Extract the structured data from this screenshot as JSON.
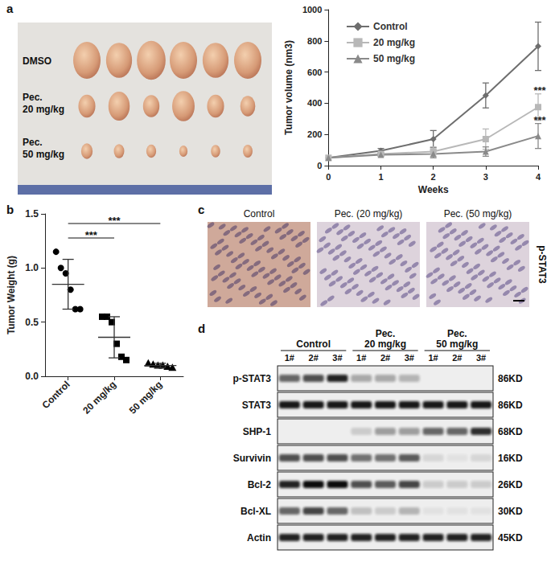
{
  "chart_data": [
    {
      "type": "line",
      "x_label": "Weeks",
      "y_label": "Tumor volume (nm3)",
      "x": [
        0,
        1,
        2,
        3,
        4
      ],
      "xlim": [
        0,
        4
      ],
      "xticks": [
        0,
        1,
        2,
        3,
        4
      ],
      "ylim": [
        0,
        1000
      ],
      "yticks": [
        0,
        200,
        400,
        600,
        800,
        1000
      ],
      "grid": false,
      "legend": "upper left",
      "series": [
        {
          "name": "Control",
          "color": "#6e6e6e",
          "marker": "diamond",
          "values": [
            50,
            95,
            170,
            450,
            765
          ],
          "errors": [
            0,
            15,
            55,
            80,
            155
          ]
        },
        {
          "name": "20 mg/kg",
          "color": "#b8b8b8",
          "marker": "square",
          "values": [
            50,
            75,
            90,
            170,
            375
          ],
          "errors": [
            0,
            10,
            30,
            65,
            85
          ]
        },
        {
          "name": "50 mg/kg",
          "color": "#8a8a8a",
          "marker": "triangle",
          "values": [
            50,
            70,
            75,
            90,
            190
          ],
          "errors": [
            0,
            10,
            25,
            30,
            80
          ]
        }
      ],
      "annotations": [
        {
          "text": "***",
          "series": "20 mg/kg",
          "x": 4
        },
        {
          "text": "***",
          "series": "50 mg/kg",
          "x": 4
        }
      ]
    },
    {
      "type": "scatter",
      "y_label": "Tumor Weight (g)",
      "categories": [
        "Control",
        "20 mg/kg",
        "50 mg/kg"
      ],
      "ylim": [
        0,
        1.5
      ],
      "yticks": [
        {
          "value": 0,
          "label": "0.0"
        },
        {
          "value": 0.5,
          "label": "0.5"
        },
        {
          "value": 1,
          "label": "1.0"
        },
        {
          "value": 1.5,
          "label": "1.5"
        }
      ],
      "grid": false,
      "color": "#000000",
      "markers": [
        "circle",
        "square",
        "triangle"
      ],
      "points": [
        [
          1.15,
          1.0,
          0.95,
          0.8,
          0.62,
          0.62
        ],
        [
          0.55,
          0.55,
          0.5,
          0.3,
          0.18,
          0.15
        ],
        [
          0.12,
          0.11,
          0.1,
          0.1,
          0.09,
          0.08
        ]
      ],
      "means": [
        0.85,
        0.36,
        0.1
      ],
      "sds": [
        0.23,
        0.19,
        0.02
      ],
      "annotations": [
        {
          "text": "***",
          "from": "Control",
          "to": "20 mg/kg"
        },
        {
          "text": "***",
          "from": "Control",
          "to": "50 mg/kg"
        }
      ]
    }
  ],
  "panel_labels": [
    "a",
    "b",
    "c",
    "d"
  ],
  "photo": {
    "rows": [
      [
        "DMSO"
      ],
      [
        "Pec.",
        "20 mg/kg"
      ],
      [
        "Pec.",
        "50 mg/kg"
      ]
    ]
  },
  "ihc": {
    "images": [
      "Control",
      "Pec. (20 mg/kg)",
      "Pec. (50 mg/kg)"
    ],
    "stain": "p-STAT3"
  },
  "blot": {
    "groups": [
      [
        "Control"
      ],
      [
        "Pec.",
        "20 mg/kg"
      ],
      [
        "Pec.",
        "50 mg/kg"
      ]
    ],
    "lanes": [
      "1#",
      "2#",
      "3#",
      "1#",
      "2#",
      "3#",
      "1#",
      "2#",
      "3#"
    ],
    "rows": [
      {
        "name": "p-STAT3",
        "size": "86KD",
        "intensity": [
          0.6,
          0.7,
          0.9,
          0.3,
          0.3,
          0.25,
          0,
          0,
          0
        ]
      },
      {
        "name": "STAT3",
        "size": "86KD",
        "intensity": [
          0.95,
          0.95,
          0.95,
          0.95,
          0.95,
          0.95,
          0.95,
          0.95,
          0.95
        ]
      },
      {
        "name": "SHP-1",
        "size": "68KD",
        "intensity": [
          0,
          0,
          0,
          0.15,
          0.35,
          0.35,
          0.6,
          0.6,
          0.85
        ]
      },
      {
        "name": "Survivin",
        "size": "16KD",
        "intensity": [
          0.7,
          0.7,
          0.7,
          0.55,
          0.55,
          0.65,
          0.1,
          0.05,
          0.1
        ]
      },
      {
        "name": "Bcl-2",
        "size": "26KD",
        "intensity": [
          0.9,
          1,
          1,
          0.7,
          0.65,
          0.75,
          0.15,
          0.15,
          0.15
        ]
      },
      {
        "name": "Bcl-XL",
        "size": "30KD",
        "intensity": [
          0.6,
          0.75,
          0.6,
          0.2,
          0.15,
          0.25,
          0.05,
          0.05,
          0.05
        ]
      },
      {
        "name": "Actin",
        "size": "45KD",
        "intensity": [
          0.9,
          0.9,
          0.9,
          0.9,
          0.9,
          0.9,
          0.9,
          0.9,
          0.9
        ]
      }
    ]
  }
}
